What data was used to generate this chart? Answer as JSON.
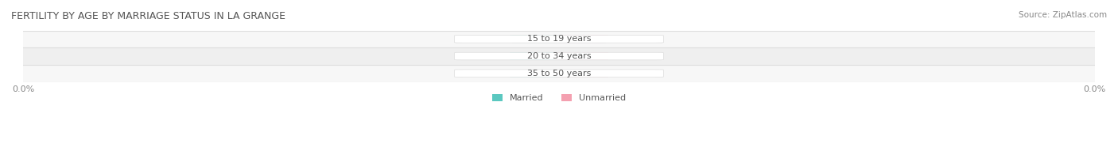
{
  "title": "FERTILITY BY AGE BY MARRIAGE STATUS IN LA GRANGE",
  "source": "Source: ZipAtlas.com",
  "categories": [
    "15 to 19 years",
    "20 to 34 years",
    "35 to 50 years"
  ],
  "married_values": [
    0.0,
    0.0,
    0.0
  ],
  "unmarried_values": [
    0.0,
    0.0,
    0.0
  ],
  "married_color": "#5BC8C0",
  "unmarried_color": "#F4A0B0",
  "bar_bg_color": "#EFEFEF",
  "row_bg_colors": [
    "#F7F7F7",
    "#EFEFEF",
    "#F7F7F7"
  ],
  "title_fontsize": 9,
  "source_fontsize": 7.5,
  "label_fontsize": 8,
  "value_fontsize": 7.5,
  "xlim": [
    -1,
    1
  ],
  "bar_height": 0.55,
  "background_color": "#FFFFFF",
  "grid_color": "#DDDDDD",
  "x_tick_left": "0.0%",
  "x_tick_right": "0.0%"
}
